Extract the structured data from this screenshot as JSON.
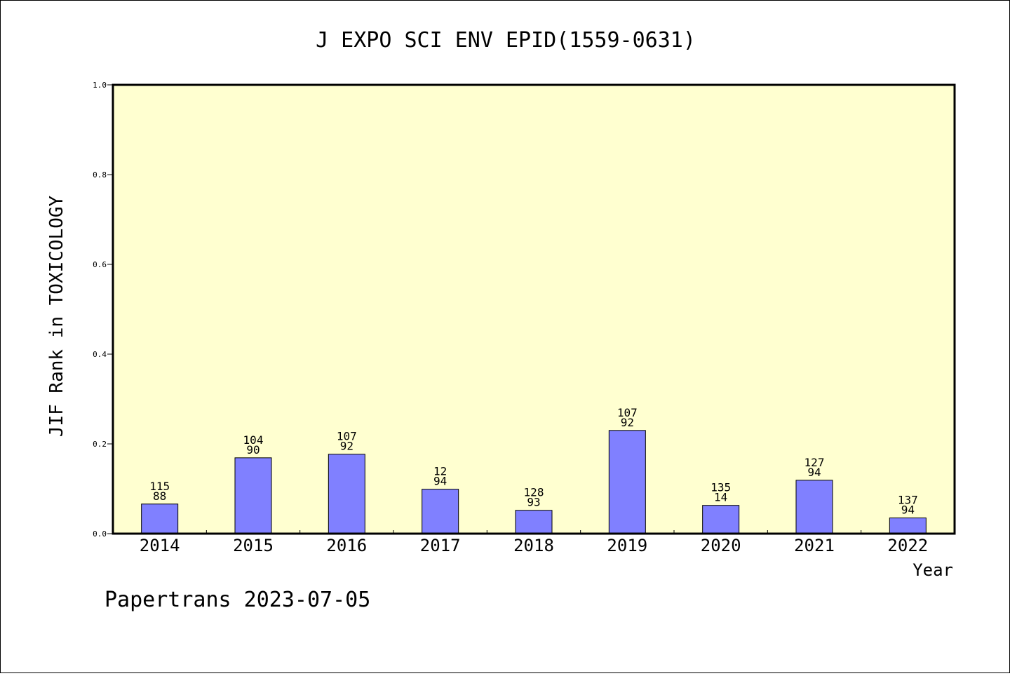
{
  "chart_data": {
    "type": "bar",
    "title": "J EXPO SCI ENV EPID(1559-0631)",
    "ylabel": "JIF Rank in TOXICOLOGY",
    "xlabel": "Year",
    "ylim": [
      0,
      1.0
    ],
    "yticks": [
      "0.0",
      "0.2",
      "0.4",
      "0.6",
      "0.8",
      "1.0"
    ],
    "categories": [
      "2014",
      "2015",
      "2016",
      "2017",
      "2018",
      "2019",
      "2020",
      "2021",
      "2022"
    ],
    "values": [
      0.066,
      0.169,
      0.177,
      0.099,
      0.052,
      0.23,
      0.063,
      0.119,
      0.035
    ],
    "labels_top": [
      "115",
      "104",
      "107",
      "12",
      "128",
      "107",
      "135",
      "127",
      "137"
    ],
    "labels_bottom": [
      "88",
      "90",
      "92",
      "94",
      "93",
      "92",
      "14",
      "94",
      "94"
    ],
    "colors": {
      "bar": "#8080ff",
      "plot_bg": "#ffffd0",
      "axis": "#000000"
    },
    "grid": false,
    "legend": "none"
  },
  "footer": "Papertrans 2023-07-05"
}
